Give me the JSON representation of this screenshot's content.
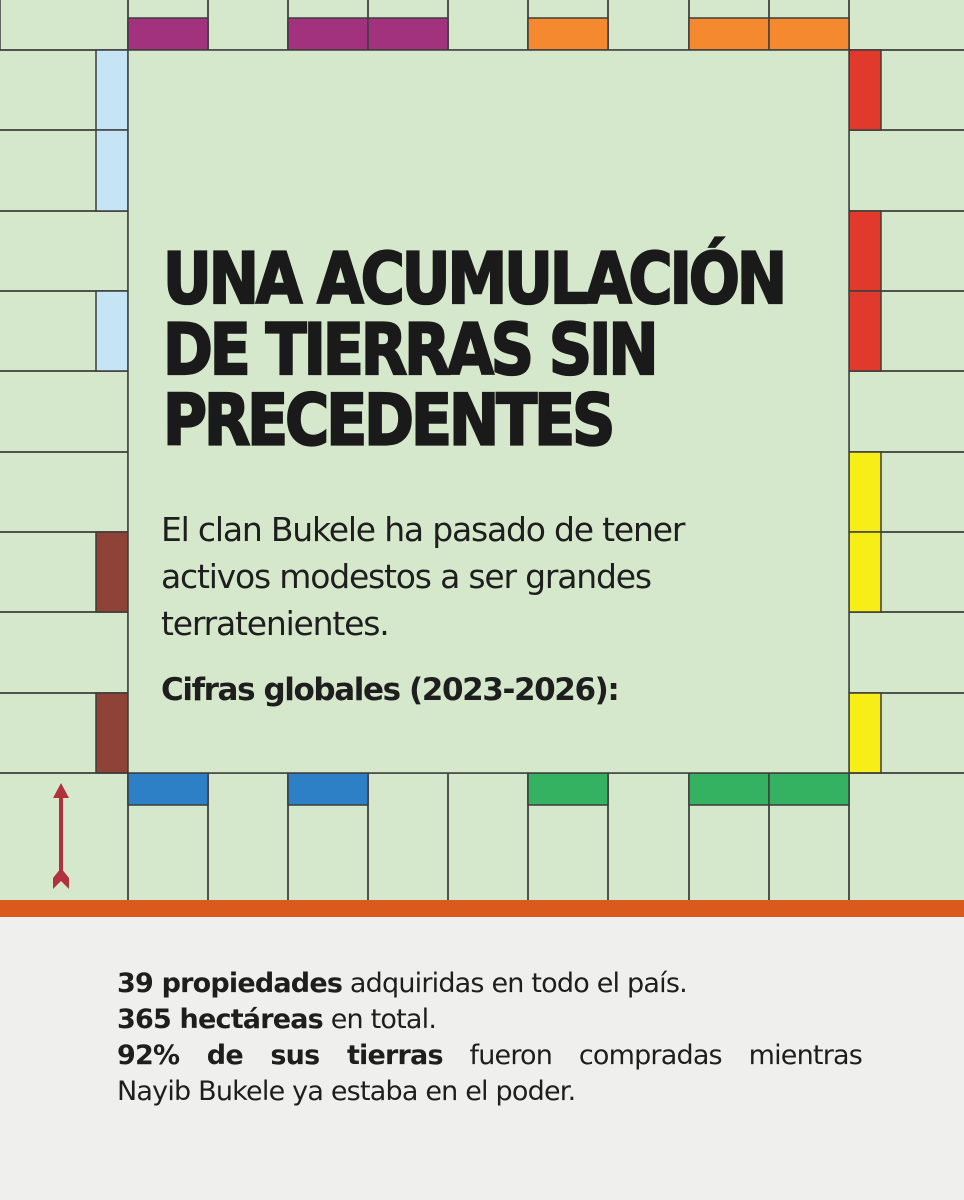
{
  "title": "UNA ACUMULACIÓN DE TIERRAS SIN PRECEDENTES",
  "subtitle": "El clan Bukele ha pasado de tener activos modestos a ser grandes terratenientes.",
  "section_heading": "Cifras globales (2023-2026):",
  "facts": [
    {
      "bold": "39 propiedades",
      "text": " adquiridas en todo el país."
    },
    {
      "bold": "365 hectáreas",
      "text": " en total."
    },
    {
      "bold": "92% de sus tierras",
      "text": " fueron compradas mientras"
    },
    {
      "bold": "",
      "text": "Nayib Bukele ya estaba en el poder."
    }
  ],
  "colors": {
    "board_background": "#d5e8cc",
    "grid_line": "#3d3d3d",
    "purple": "#a3327e",
    "orange": "#f5892f",
    "red": "#e2392d",
    "yellow": "#f7ee17",
    "green": "#35b261",
    "dark_blue": "#2d7fc6",
    "light_blue": "#c5e5f6",
    "brown": "#8e4336",
    "arrow": "#b0323c",
    "divider": "#d95a1c"
  },
  "icons": {
    "go_arrow": "up-arrow-icon"
  }
}
